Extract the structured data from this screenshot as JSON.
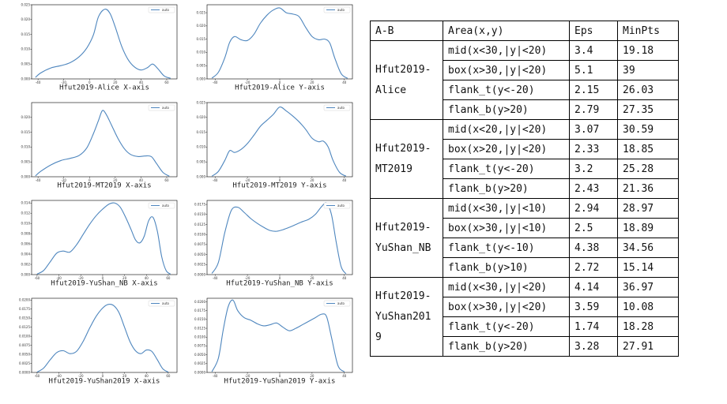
{
  "chart_data": [
    {
      "type": "line",
      "xlabel": "Hfut2019-Alice X-axis",
      "legend": "auto",
      "legend_position": "top-right",
      "xlim": [
        -45,
        68
      ],
      "ylim": [
        0,
        0.025
      ],
      "xticks": [
        -40,
        -20,
        0,
        20,
        40,
        60
      ],
      "yticks": [
        0.0,
        0.005,
        0.01,
        0.015,
        0.02,
        0.025
      ],
      "ytick_labels": [
        "0.000",
        "0.005",
        "0.010",
        "0.015",
        "0.020",
        "0.025"
      ],
      "series": [
        {
          "x": [
            -42,
            -38,
            -30,
            -22,
            -15,
            -8,
            -2,
            3,
            7,
            12,
            16,
            20,
            25,
            30,
            35,
            40,
            45,
            49,
            53,
            58,
            63
          ],
          "values": [
            0.0005,
            0.002,
            0.0037,
            0.0045,
            0.0055,
            0.0075,
            0.0105,
            0.0148,
            0.021,
            0.0235,
            0.022,
            0.0175,
            0.011,
            0.0065,
            0.004,
            0.003,
            0.0038,
            0.005,
            0.0035,
            0.001,
            0.0002
          ]
        }
      ]
    },
    {
      "type": "line",
      "xlabel": "Hfut2019-Alice Y-axis",
      "legend": "auto",
      "legend_position": "top-right",
      "xlim": [
        -45,
        45
      ],
      "ylim": [
        0,
        0.028
      ],
      "xticks": [
        -40,
        -20,
        0,
        20,
        40
      ],
      "yticks": [
        0.0,
        0.005,
        0.01,
        0.015,
        0.02,
        0.025
      ],
      "ytick_labels": [
        "0.000",
        "0.005",
        "0.010",
        "0.015",
        "0.020",
        "0.025"
      ],
      "series": [
        {
          "x": [
            -42,
            -38,
            -34,
            -31,
            -28,
            -24,
            -20,
            -16,
            -12,
            -8,
            -4,
            0,
            4,
            8,
            12,
            16,
            20,
            24,
            28,
            31,
            34,
            38,
            42
          ],
          "values": [
            0.0003,
            0.0025,
            0.008,
            0.0138,
            0.016,
            0.0148,
            0.0145,
            0.0168,
            0.021,
            0.024,
            0.026,
            0.0268,
            0.025,
            0.0245,
            0.0235,
            0.0195,
            0.016,
            0.0148,
            0.015,
            0.0135,
            0.008,
            0.002,
            0.0002
          ]
        }
      ]
    },
    {
      "type": "line",
      "xlabel": "Hfut2019-MT2019 X-axis",
      "legend": "auto",
      "legend_position": "top-right",
      "xlim": [
        -45,
        68
      ],
      "ylim": [
        0,
        0.025
      ],
      "xticks": [
        -40,
        -20,
        0,
        20,
        40,
        60
      ],
      "yticks": [
        0.0,
        0.005,
        0.01,
        0.015,
        0.02
      ],
      "ytick_labels": [
        "0.000",
        "0.005",
        "0.010",
        "0.015",
        "0.020"
      ],
      "series": [
        {
          "x": [
            -42,
            -38,
            -30,
            -22,
            -15,
            -8,
            -2,
            3,
            7,
            10,
            13,
            17,
            22,
            27,
            32,
            38,
            43,
            48,
            52,
            57,
            62
          ],
          "values": [
            0.0003,
            0.0018,
            0.004,
            0.0055,
            0.0062,
            0.0072,
            0.0098,
            0.0145,
            0.019,
            0.0223,
            0.021,
            0.0175,
            0.013,
            0.0095,
            0.0075,
            0.0068,
            0.007,
            0.0068,
            0.0045,
            0.0015,
            0.0002
          ]
        }
      ]
    },
    {
      "type": "line",
      "xlabel": "Hfut2019-MT2019 Y-axis",
      "legend": "auto",
      "legend_position": "top-right",
      "xlim": [
        -45,
        45
      ],
      "ylim": [
        0,
        0.025
      ],
      "xticks": [
        -40,
        -20,
        0,
        20,
        40
      ],
      "yticks": [
        0.0,
        0.005,
        0.01,
        0.015,
        0.02,
        0.025
      ],
      "ytick_labels": [
        "0.000",
        "0.005",
        "0.010",
        "0.015",
        "0.020",
        "0.025"
      ],
      "series": [
        {
          "x": [
            -42,
            -38,
            -34,
            -31,
            -28,
            -24,
            -20,
            -16,
            -12,
            -8,
            -4,
            0,
            4,
            8,
            12,
            16,
            20,
            24,
            27,
            30,
            33,
            37,
            41
          ],
          "values": [
            0.0002,
            0.0018,
            0.0055,
            0.0088,
            0.0082,
            0.0092,
            0.0112,
            0.014,
            0.017,
            0.019,
            0.021,
            0.0235,
            0.0222,
            0.0205,
            0.0185,
            0.016,
            0.013,
            0.0118,
            0.012,
            0.01,
            0.0055,
            0.0015,
            0.0002
          ]
        }
      ]
    },
    {
      "type": "line",
      "xlabel": "Hfut2019-YuShan_NB X-axis",
      "legend": "auto",
      "legend_position": "top-right",
      "xlim": [
        -65,
        68
      ],
      "ylim": [
        0,
        0.0145
      ],
      "xticks": [
        -60,
        -40,
        -20,
        0,
        20,
        40,
        60
      ],
      "yticks": [
        0.0,
        0.002,
        0.004,
        0.006,
        0.008,
        0.01,
        0.012,
        0.014
      ],
      "ytick_labels": [
        "0.000",
        "0.002",
        "0.004",
        "0.006",
        "0.008",
        "0.010",
        "0.012",
        "0.014"
      ],
      "series": [
        {
          "x": [
            -60,
            -54,
            -48,
            -42,
            -36,
            -30,
            -24,
            -18,
            -12,
            -6,
            0,
            6,
            11,
            16,
            21,
            26,
            30,
            34,
            38,
            42,
            46,
            50,
            54,
            58,
            62
          ],
          "values": [
            0.0001,
            0.0008,
            0.0025,
            0.0042,
            0.0046,
            0.0044,
            0.0058,
            0.0078,
            0.0098,
            0.0115,
            0.0128,
            0.0138,
            0.014,
            0.0132,
            0.0112,
            0.0088,
            0.0068,
            0.0062,
            0.0075,
            0.0105,
            0.0112,
            0.0085,
            0.0035,
            0.0008,
            0.0001
          ]
        }
      ]
    },
    {
      "type": "line",
      "xlabel": "Hfut2019-YuShan_NB Y-axis",
      "legend": "auto",
      "legend_position": "top-right",
      "xlim": [
        -45,
        45
      ],
      "ylim": [
        0,
        0.0185
      ],
      "xticks": [
        -40,
        -20,
        0,
        20,
        40
      ],
      "yticks": [
        0.0,
        0.0025,
        0.005,
        0.0075,
        0.01,
        0.0125,
        0.015,
        0.0175
      ],
      "ytick_labels": [
        "0.0000",
        "0.0025",
        "0.0050",
        "0.0075",
        "0.0100",
        "0.0125",
        "0.0150",
        "0.0175"
      ],
      "series": [
        {
          "x": [
            -42,
            -38,
            -34,
            -30,
            -26,
            -22,
            -18,
            -14,
            -10,
            -6,
            -2,
            2,
            6,
            10,
            14,
            18,
            22,
            26,
            29,
            32,
            35,
            38,
            41
          ],
          "values": [
            0.0003,
            0.003,
            0.0105,
            0.016,
            0.0168,
            0.0155,
            0.014,
            0.0128,
            0.0118,
            0.011,
            0.0108,
            0.0112,
            0.0118,
            0.0125,
            0.0132,
            0.0138,
            0.015,
            0.017,
            0.0178,
            0.015,
            0.008,
            0.002,
            0.0002
          ]
        }
      ]
    },
    {
      "type": "line",
      "xlabel": "Hfut2019-YuShan2019 X-axis",
      "legend": "auto",
      "legend_position": "top-right",
      "xlim": [
        -65,
        68
      ],
      "ylim": [
        0,
        0.0205
      ],
      "xticks": [
        -60,
        -40,
        -20,
        0,
        20,
        40,
        60
      ],
      "yticks": [
        0.0,
        0.0025,
        0.005,
        0.0075,
        0.01,
        0.0125,
        0.015,
        0.0175,
        0.02
      ],
      "ytick_labels": [
        "0.0000",
        "0.0025",
        "0.0050",
        "0.0075",
        "0.0100",
        "0.0125",
        "0.0150",
        "0.0175",
        "0.0200"
      ],
      "series": [
        {
          "x": [
            -60,
            -54,
            -48,
            -42,
            -36,
            -30,
            -24,
            -18,
            -12,
            -6,
            0,
            5,
            10,
            15,
            20,
            25,
            30,
            35,
            40,
            45,
            50,
            55,
            60
          ],
          "values": [
            0.0001,
            0.0012,
            0.0035,
            0.0055,
            0.006,
            0.0052,
            0.0058,
            0.0085,
            0.0122,
            0.0155,
            0.0178,
            0.0188,
            0.0185,
            0.0165,
            0.0125,
            0.0085,
            0.006,
            0.0052,
            0.0062,
            0.0058,
            0.0035,
            0.001,
            0.0001
          ]
        }
      ]
    },
    {
      "type": "line",
      "xlabel": "Hfut2019-YuShan2019 Y-axis",
      "legend": "auto",
      "legend_position": "top-right",
      "xlim": [
        -45,
        45
      ],
      "ylim": [
        0,
        0.021
      ],
      "xticks": [
        -40,
        -20,
        0,
        20,
        40
      ],
      "yticks": [
        0.0,
        0.0025,
        0.005,
        0.0075,
        0.01,
        0.0125,
        0.015,
        0.0175,
        0.02
      ],
      "ytick_labels": [
        "0.0000",
        "0.0025",
        "0.0050",
        "0.0075",
        "0.0100",
        "0.0125",
        "0.0150",
        "0.0175",
        "0.0200"
      ],
      "series": [
        {
          "x": [
            -42,
            -38,
            -35,
            -32,
            -29,
            -26,
            -22,
            -18,
            -14,
            -10,
            -6,
            -2,
            2,
            6,
            10,
            14,
            18,
            22,
            26,
            29,
            32,
            36,
            40
          ],
          "values": [
            0.0002,
            0.004,
            0.012,
            0.0185,
            0.0205,
            0.0175,
            0.0155,
            0.0148,
            0.0138,
            0.0132,
            0.0135,
            0.014,
            0.0128,
            0.0118,
            0.0125,
            0.0135,
            0.0145,
            0.0155,
            0.0165,
            0.0158,
            0.01,
            0.002,
            0.0002
          ]
        }
      ]
    }
  ],
  "colors": {
    "line": "#4e86be",
    "axis": "#000000"
  },
  "table": {
    "headers": [
      "A-B",
      "Area(x,y)",
      "Eps",
      "MinPts"
    ],
    "groups": [
      {
        "name": "Hfut2019-\nAlice",
        "rows": [
          {
            "area": "mid(x<30,|y|<20)",
            "eps": "3.4",
            "minpts": "19.18"
          },
          {
            "area": "box(x>30,|y|<20)",
            "eps": "5.1",
            "minpts": "39"
          },
          {
            "area": "flank_t(y<-20)",
            "eps": "2.15",
            "minpts": "26.03"
          },
          {
            "area": "flank_b(y>20)",
            "eps": "2.79",
            "minpts": "27.35"
          }
        ]
      },
      {
        "name": "Hfut2019-\nMT2019",
        "rows": [
          {
            "area": "mid(x<20,|y|<20)",
            "eps": "3.07",
            "minpts": "30.59"
          },
          {
            "area": "box(x>20,|y|<20)",
            "eps": "2.33",
            "minpts": "18.85"
          },
          {
            "area": "flank_t(y<-20)",
            "eps": "3.2",
            "minpts": "25.28"
          },
          {
            "area": "flank_b(y>20)",
            "eps": "2.43",
            "minpts": "21.36"
          }
        ]
      },
      {
        "name": "Hfut2019-\nYuShan_NB",
        "rows": [
          {
            "area": "mid(x<30,|y|<10)",
            "eps": "2.94",
            "minpts": "28.97"
          },
          {
            "area": "box(x>30,|y|<10)",
            "eps": "2.5",
            "minpts": "18.89"
          },
          {
            "area": "flank_t(y<-10)",
            "eps": "4.38",
            "minpts": "34.56"
          },
          {
            "area": "flank_b(y>10)",
            "eps": "2.72",
            "minpts": "15.14"
          }
        ]
      },
      {
        "name": "Hfut2019-\nYuShan201\n9",
        "rows": [
          {
            "area": "mid(x<30,|y|<20)",
            "eps": "4.14",
            "minpts": "36.97"
          },
          {
            "area": "box(x>30,|y|<20)",
            "eps": "3.59",
            "minpts": "10.08"
          },
          {
            "area": "flank_t(y<-20)",
            "eps": "1.74",
            "minpts": "18.28"
          },
          {
            "area": "flank_b(y>20)",
            "eps": "3.28",
            "minpts": "27.91"
          }
        ]
      }
    ]
  }
}
